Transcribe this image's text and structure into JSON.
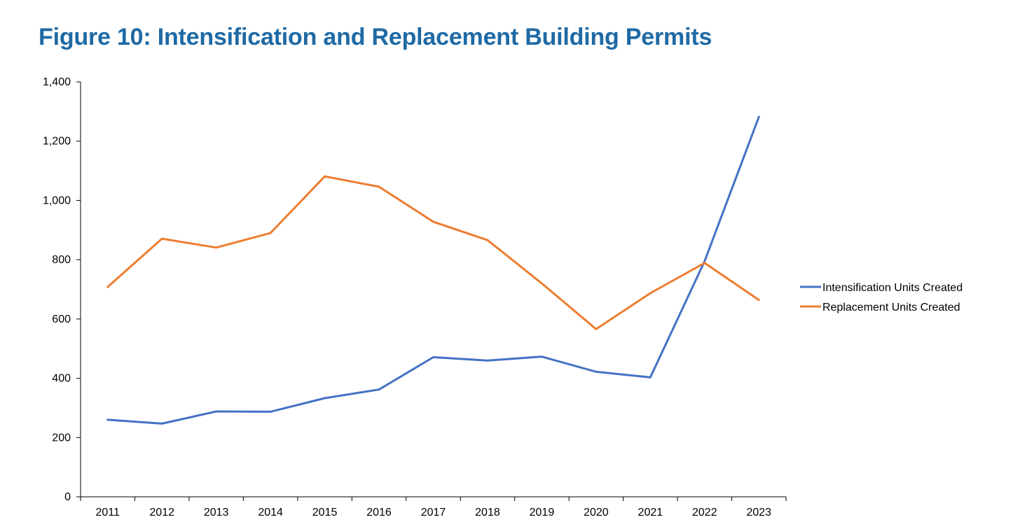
{
  "title": "Figure 10: Intensification and Replacement Building Permits",
  "chart_data": {
    "type": "line",
    "title": "Figure 10: Intensification and Replacement Building Permits",
    "xlabel": "",
    "ylabel": "",
    "categories": [
      "2011",
      "2012",
      "2013",
      "2014",
      "2015",
      "2016",
      "2017",
      "2018",
      "2019",
      "2020",
      "2021",
      "2022",
      "2023"
    ],
    "ylim": [
      0,
      1400
    ],
    "yticks": [
      0,
      200,
      400,
      600,
      800,
      1000,
      1200,
      1400
    ],
    "ytick_labels": [
      "0",
      "200",
      "400",
      "600",
      "800",
      "1,000",
      "1,200",
      "1,400"
    ],
    "grid": false,
    "legend_position": "right",
    "series": [
      {
        "name": "Intensification Units Created",
        "color": "#4472c4",
        "values": [
          260,
          247,
          288,
          287,
          333,
          362,
          471,
          460,
          473,
          422,
          403,
          795,
          1282
        ]
      },
      {
        "name": "Replacement Units Created",
        "color": "#ed7d31",
        "values": [
          708,
          871,
          841,
          890,
          1081,
          1046,
          928,
          866,
          720,
          566,
          687,
          789,
          664
        ]
      }
    ]
  }
}
